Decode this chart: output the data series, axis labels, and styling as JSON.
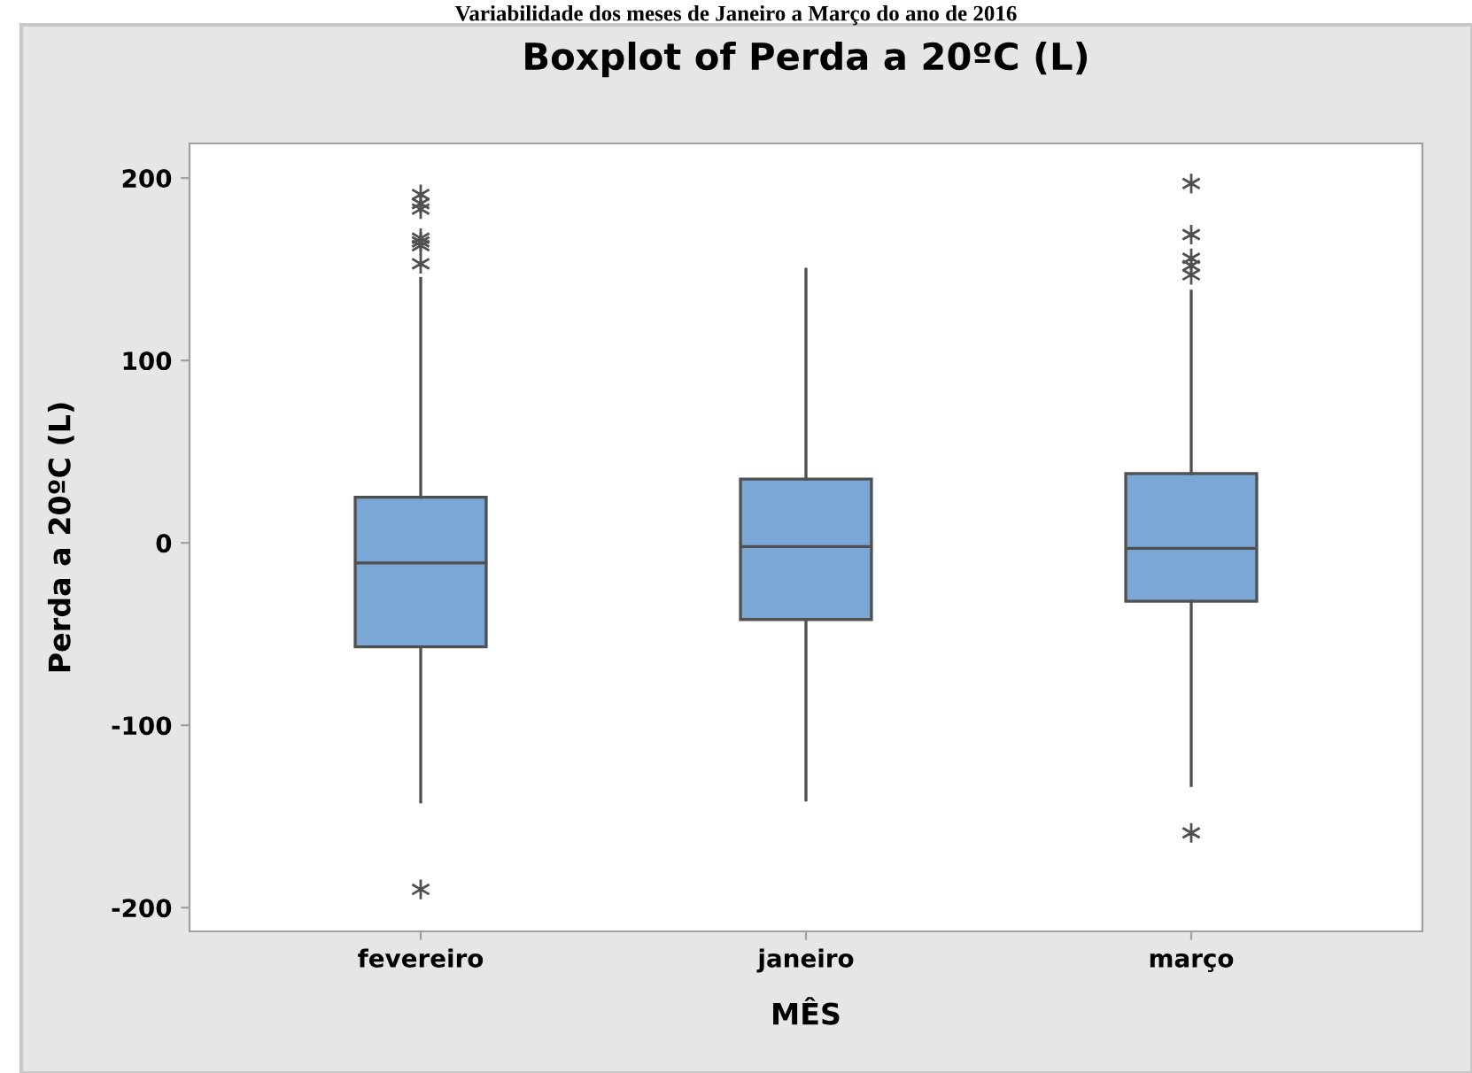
{
  "chart_data": {
    "type": "box",
    "title": "Boxplot of Perda a 20ºC (L)",
    "xlabel": "MÊS",
    "ylabel": "Perda a 20ºC (L)",
    "annotations": [
      "Variabilidade dos meses de Janeiro a Março do ano de 2016"
    ],
    "categories": [
      "fevereiro",
      "janeiro",
      "março"
    ],
    "color": "#7ba7d7",
    "boxes": [
      {
        "low": -142,
        "q1": -57,
        "median": -11,
        "q3": 25,
        "high": 145,
        "outliers": [
          191,
          186,
          183,
          167,
          165,
          163,
          153,
          -190
        ]
      },
      {
        "low": -141,
        "q1": -42,
        "median": -2,
        "q3": 35,
        "high": 150
      },
      {
        "low": -133,
        "q1": -32,
        "median": -3,
        "q3": 38,
        "high": 138,
        "outliers": [
          197,
          169,
          156,
          152,
          147,
          -159
        ]
      }
    ],
    "ylim": [
      -213,
      219
    ],
    "yticks": [
      -200,
      -100,
      0,
      100,
      200
    ],
    "grid": false,
    "legend": false
  }
}
